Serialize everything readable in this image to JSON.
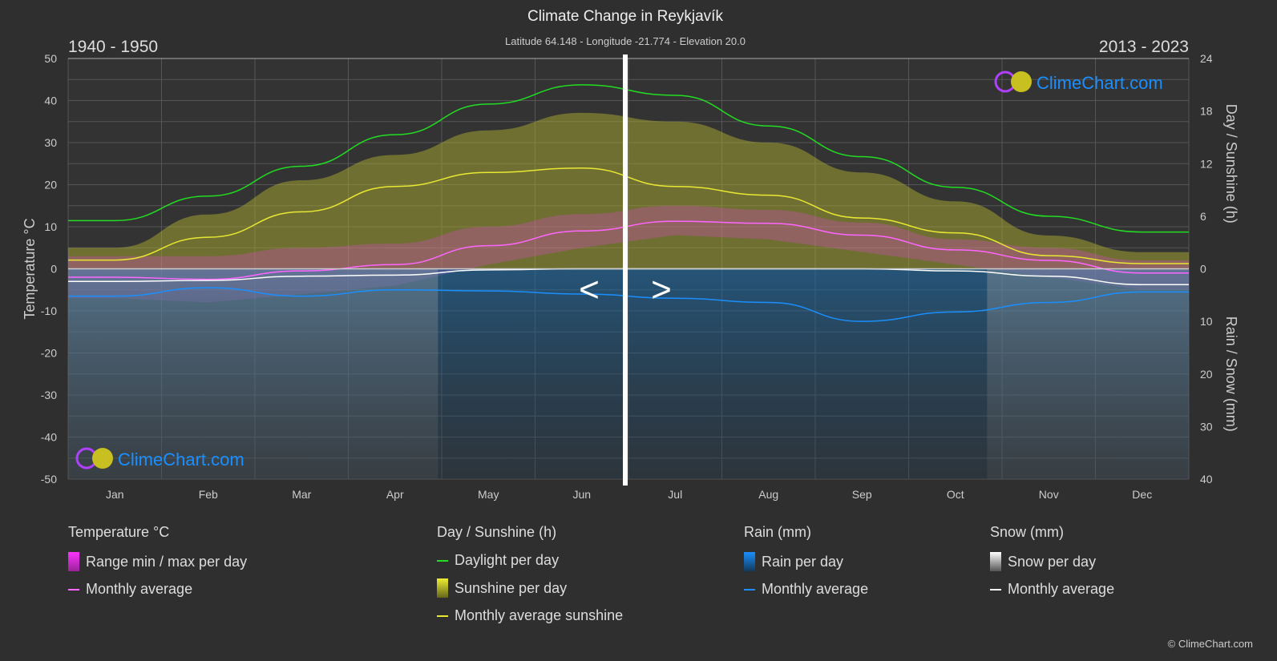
{
  "header": {
    "title": "Climate Change in Reykjavík",
    "subtitle": "Latitude 64.148 - Longitude -21.774 - Elevation 20.0",
    "period_left": "1940 - 1950",
    "period_right": "2013 - 2023",
    "nav_prev": "<",
    "nav_next": ">"
  },
  "logo": "ClimeChart.com",
  "copyright": "© ClimeChart.com",
  "colors": {
    "background": "#2f2f2f",
    "daylight": "#22dd22",
    "sunshine": "#e8e832",
    "temperature_avg": "#ff66ff",
    "temperature_range": "#dd22dd",
    "rain": "#1a8fff",
    "snow": "#ffffff",
    "logo_text": "#1a8fff"
  },
  "chart_data": {
    "type": "line",
    "categories": [
      "Jan",
      "Feb",
      "Mar",
      "Apr",
      "May",
      "Jun",
      "Jul",
      "Aug",
      "Sep",
      "Oct",
      "Nov",
      "Dec"
    ],
    "left_axis": {
      "label": "Temperature °C",
      "ticks": [
        50,
        40,
        30,
        20,
        10,
        0,
        -10,
        -20,
        -30,
        -40,
        -50
      ],
      "range": [
        -50,
        50
      ]
    },
    "right_axis_top": {
      "label": "Day / Sunshine (h)",
      "ticks": [
        24,
        18,
        12,
        6,
        0
      ],
      "range": [
        0,
        24
      ]
    },
    "right_axis_bottom": {
      "label": "Rain / Snow (mm)",
      "ticks": [
        0,
        10,
        20,
        30,
        40
      ],
      "range": [
        0,
        40
      ]
    },
    "grid": true,
    "series": [
      {
        "name": "Daylight per day",
        "unit": "h",
        "values": [
          5.5,
          8.3,
          11.7,
          15.3,
          18.8,
          21.0,
          19.8,
          16.3,
          12.8,
          9.3,
          6.0,
          4.2
        ]
      },
      {
        "name": "Monthly average sunshine",
        "unit": "h",
        "values": [
          1.0,
          3.6,
          6.5,
          9.4,
          11.0,
          11.5,
          9.4,
          8.4,
          5.8,
          4.1,
          1.5,
          0.6
        ]
      },
      {
        "name": "Sunshine per day",
        "unit": "h",
        "values": [
          2.4,
          6.2,
          10.1,
          13.0,
          15.8,
          17.8,
          16.8,
          14.4,
          11.0,
          7.7,
          3.8,
          1.9
        ]
      },
      {
        "name": "Temperature monthly average",
        "unit": "°C",
        "values": [
          -2.0,
          -2.5,
          -0.5,
          1.0,
          5.5,
          9.0,
          11.3,
          10.8,
          8.0,
          4.5,
          2.0,
          -1.0
        ]
      },
      {
        "name": "Range min / max per day",
        "unit": "°C",
        "max": [
          3,
          3,
          5,
          6,
          10,
          13,
          15,
          14,
          11,
          7,
          5,
          2
        ],
        "min": [
          -7,
          -8,
          -6,
          -4,
          1,
          5,
          8,
          7,
          4,
          1,
          -2,
          -5
        ]
      },
      {
        "name": "Rain monthly average",
        "unit": "mm",
        "values": [
          5.2,
          3.6,
          5.2,
          4.0,
          4.2,
          4.8,
          5.6,
          6.4,
          10.0,
          8.2,
          6.4,
          4.4
        ]
      },
      {
        "name": "Snow monthly average",
        "unit": "mm",
        "values": [
          2.4,
          2.2,
          1.4,
          1.2,
          0.2,
          0.0,
          0.0,
          0.0,
          0.0,
          0.4,
          1.4,
          3.0
        ]
      }
    ]
  },
  "legend": {
    "temperature": {
      "title": "Temperature °C",
      "range": "Range min / max per day",
      "avg": "Monthly average"
    },
    "sun": {
      "title": "Day / Sunshine (h)",
      "daylight": "Daylight per day",
      "sunshine": "Sunshine per day",
      "avg": "Monthly average sunshine"
    },
    "rain": {
      "title": "Rain (mm)",
      "per_day": "Rain per day",
      "avg": "Monthly average"
    },
    "snow": {
      "title": "Snow (mm)",
      "per_day": "Snow per day",
      "avg": "Monthly average"
    }
  }
}
